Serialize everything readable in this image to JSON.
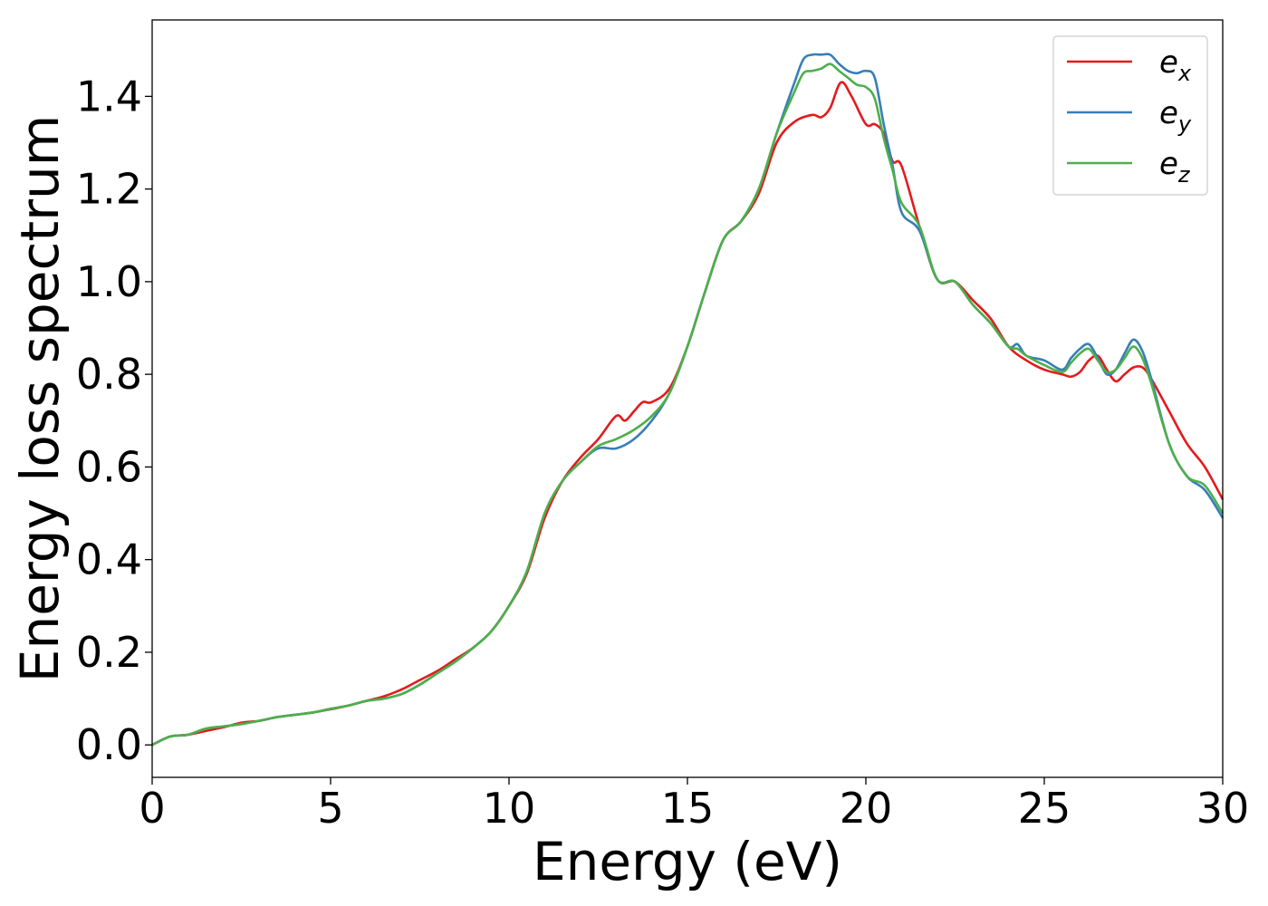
{
  "chart_data": {
    "type": "line",
    "xlabel": "Energy (eV)",
    "ylabel": "Energy loss spectrum",
    "xlim": [
      0,
      30
    ],
    "ylim": [
      -0.07,
      1.565
    ],
    "xticks": [
      0,
      5,
      10,
      15,
      20,
      25,
      30
    ],
    "xtick_labels": [
      "0",
      "5",
      "10",
      "15",
      "20",
      "25",
      "30"
    ],
    "yticks": [
      0.0,
      0.2,
      0.4,
      0.6,
      0.8,
      1.0,
      1.2,
      1.4
    ],
    "ytick_labels": [
      "0.0",
      "0.2",
      "0.4",
      "0.6",
      "0.8",
      "1.0",
      "1.2",
      "1.4"
    ],
    "grid": false,
    "legend_position": "top-right",
    "series": [
      {
        "name": "e_x",
        "legend_base": "e",
        "legend_sub": "x",
        "color": "#e41a1c",
        "x": [
          0,
          0.5,
          1,
          1.5,
          2,
          2.5,
          3,
          3.5,
          4,
          4.5,
          5,
          5.5,
          6,
          6.5,
          7,
          7.5,
          8,
          8.5,
          9,
          9.5,
          10,
          10.5,
          11,
          11.5,
          12,
          12.5,
          13,
          13.25,
          13.5,
          13.75,
          14,
          14.5,
          15,
          15.5,
          16,
          16.5,
          17,
          17.5,
          18,
          18.5,
          18.75,
          19,
          19.3,
          19.6,
          20,
          20.25,
          20.5,
          20.75,
          21,
          21.5,
          22,
          22.5,
          23,
          23.5,
          24,
          24.5,
          25,
          25.5,
          25.75,
          26,
          26.25,
          26.5,
          26.75,
          27,
          27.25,
          27.5,
          27.75,
          28,
          28.5,
          29,
          29.5,
          30
        ],
        "y": [
          0.0,
          0.018,
          0.022,
          0.03,
          0.038,
          0.048,
          0.052,
          0.06,
          0.065,
          0.07,
          0.077,
          0.085,
          0.095,
          0.105,
          0.12,
          0.14,
          0.16,
          0.185,
          0.21,
          0.245,
          0.3,
          0.37,
          0.49,
          0.57,
          0.62,
          0.66,
          0.71,
          0.7,
          0.72,
          0.74,
          0.74,
          0.77,
          0.86,
          0.98,
          1.09,
          1.13,
          1.19,
          1.3,
          1.345,
          1.36,
          1.355,
          1.375,
          1.43,
          1.4,
          1.34,
          1.34,
          1.32,
          1.26,
          1.25,
          1.12,
          1.005,
          1.0,
          0.96,
          0.92,
          0.86,
          0.83,
          0.81,
          0.8,
          0.795,
          0.805,
          0.83,
          0.84,
          0.81,
          0.785,
          0.8,
          0.815,
          0.815,
          0.79,
          0.72,
          0.65,
          0.6,
          0.53
        ]
      },
      {
        "name": "e_y",
        "legend_base": "e",
        "legend_sub": "y",
        "color": "#377eb8",
        "x": [
          0,
          0.5,
          1,
          1.5,
          2,
          2.5,
          3,
          3.5,
          4,
          4.5,
          5,
          5.5,
          6,
          6.5,
          7,
          7.5,
          8,
          8.5,
          9,
          9.5,
          10,
          10.5,
          11,
          11.5,
          12,
          12.5,
          13,
          13.5,
          14,
          14.5,
          15,
          15.5,
          16,
          16.5,
          17,
          17.5,
          18,
          18.25,
          18.5,
          18.75,
          19,
          19.25,
          19.5,
          19.75,
          20,
          20.25,
          20.5,
          20.75,
          21,
          21.5,
          22,
          22.5,
          23,
          23.5,
          24,
          24.25,
          24.5,
          25,
          25.5,
          25.75,
          26,
          26.25,
          26.5,
          26.75,
          27,
          27.25,
          27.5,
          27.75,
          28,
          28.5,
          29,
          29.5,
          30
        ],
        "y": [
          0.0,
          0.018,
          0.022,
          0.035,
          0.04,
          0.045,
          0.052,
          0.06,
          0.065,
          0.07,
          0.078,
          0.085,
          0.095,
          0.1,
          0.11,
          0.13,
          0.155,
          0.18,
          0.21,
          0.245,
          0.3,
          0.375,
          0.5,
          0.57,
          0.61,
          0.64,
          0.64,
          0.66,
          0.7,
          0.76,
          0.86,
          0.98,
          1.09,
          1.13,
          1.2,
          1.32,
          1.43,
          1.48,
          1.49,
          1.49,
          1.49,
          1.47,
          1.455,
          1.45,
          1.455,
          1.44,
          1.34,
          1.25,
          1.15,
          1.11,
          1.005,
          1.0,
          0.95,
          0.91,
          0.86,
          0.865,
          0.84,
          0.83,
          0.81,
          0.835,
          0.855,
          0.865,
          0.835,
          0.8,
          0.81,
          0.845,
          0.875,
          0.85,
          0.79,
          0.65,
          0.58,
          0.55,
          0.49
        ]
      },
      {
        "name": "e_z",
        "legend_base": "e",
        "legend_sub": "z",
        "color": "#4daf4a",
        "x": [
          0,
          0.5,
          1,
          1.5,
          2,
          2.5,
          3,
          3.5,
          4,
          4.5,
          5,
          5.5,
          6,
          6.5,
          7,
          7.5,
          8,
          8.5,
          9,
          9.5,
          10,
          10.5,
          11,
          11.5,
          12,
          12.5,
          13,
          13.5,
          14,
          14.5,
          15,
          15.5,
          16,
          16.5,
          17,
          17.5,
          18,
          18.25,
          18.5,
          18.75,
          19,
          19.25,
          19.5,
          19.75,
          20,
          20.25,
          20.5,
          20.75,
          21,
          21.5,
          22,
          22.5,
          23,
          23.5,
          24,
          24.25,
          24.5,
          25,
          25.5,
          25.75,
          26,
          26.25,
          26.5,
          26.75,
          27,
          27.25,
          27.5,
          27.75,
          28,
          28.5,
          29,
          29.5,
          30
        ],
        "y": [
          0.0,
          0.018,
          0.022,
          0.035,
          0.04,
          0.045,
          0.052,
          0.06,
          0.065,
          0.07,
          0.078,
          0.085,
          0.095,
          0.1,
          0.11,
          0.13,
          0.155,
          0.18,
          0.21,
          0.245,
          0.3,
          0.375,
          0.5,
          0.57,
          0.61,
          0.645,
          0.66,
          0.68,
          0.71,
          0.76,
          0.86,
          0.98,
          1.09,
          1.13,
          1.2,
          1.32,
          1.41,
          1.45,
          1.455,
          1.46,
          1.47,
          1.455,
          1.44,
          1.425,
          1.42,
          1.395,
          1.31,
          1.24,
          1.17,
          1.12,
          1.005,
          1.0,
          0.95,
          0.91,
          0.86,
          0.855,
          0.84,
          0.82,
          0.805,
          0.825,
          0.845,
          0.855,
          0.83,
          0.805,
          0.81,
          0.835,
          0.86,
          0.835,
          0.78,
          0.65,
          0.58,
          0.56,
          0.5
        ]
      }
    ]
  }
}
